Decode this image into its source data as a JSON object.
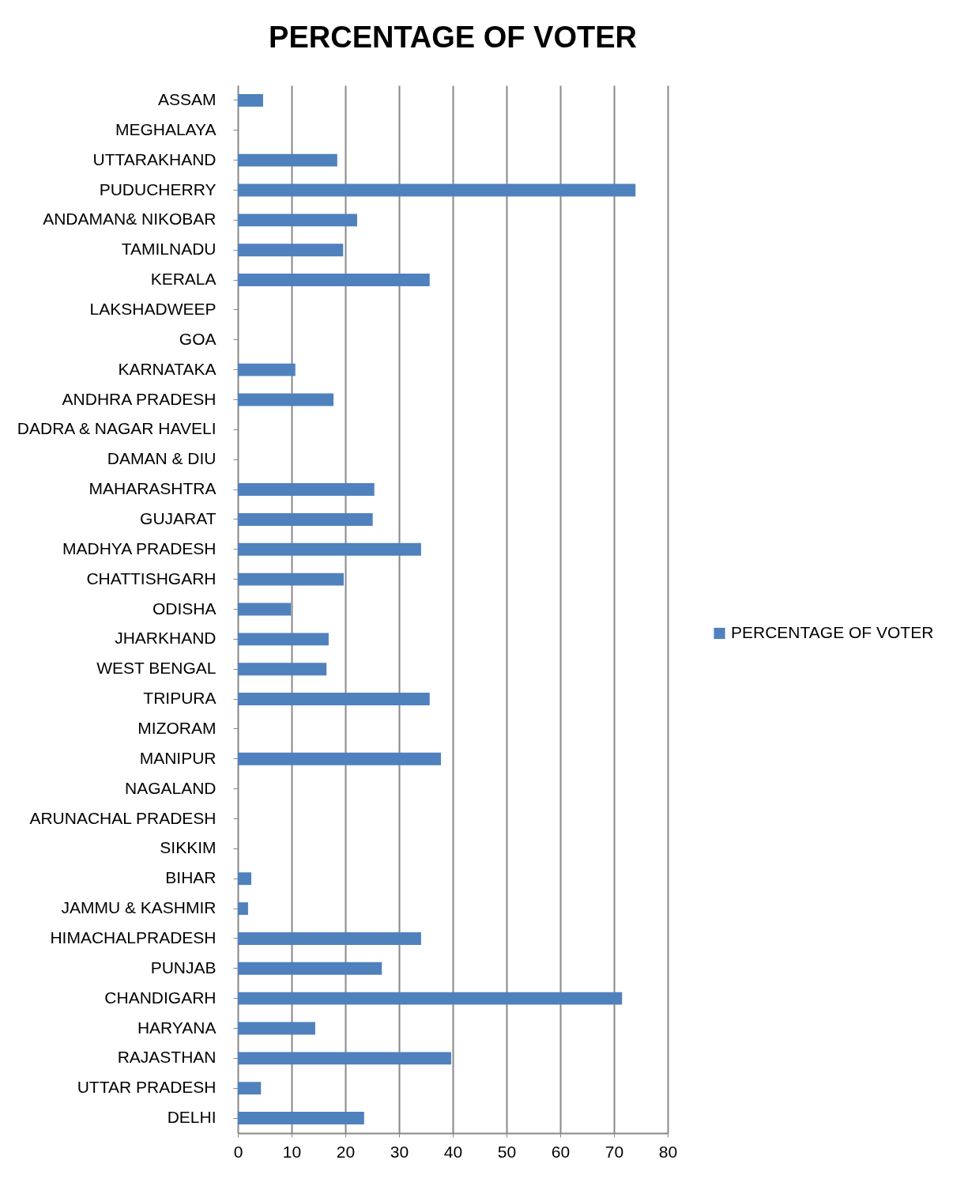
{
  "chart_data": {
    "type": "bar",
    "title": "PERCENTAGE OF VOTER",
    "orientation": "horizontal",
    "categories": [
      "ASSAM",
      "MEGHALAYA",
      "UTTARAKHAND",
      "PUDUCHERRY",
      "ANDAMAN& NIKOBAR",
      "TAMILNADU",
      "KERALA",
      "LAKSHADWEEP",
      "GOA",
      "KARNATAKA",
      "ANDHRA PRADESH",
      "DADRA & NAGAR HAVELI",
      "DAMAN & DIU",
      "MAHARASHTRA",
      "GUJARAT",
      "MADHYA PRADESH",
      "CHATTISHGARH",
      "ODISHA",
      "JHARKHAND",
      "WEST BENGAL",
      "TRIPURA",
      "MIZORAM",
      "MANIPUR",
      "NAGALAND",
      "ARUNACHAL PRADESH",
      "SIKKIM",
      "BIHAR",
      "JAMMU & KASHMIR",
      "HIMACHALPRADESH",
      "PUNJAB",
      "CHANDIGARH",
      "HARYANA",
      "RAJASTHAN",
      "UTTAR PRADESH",
      "DELHI"
    ],
    "series": [
      {
        "name": "PERCENTAGE OF VOTER",
        "color": "#4f81bd",
        "values": [
          4.7,
          0,
          18.5,
          74,
          22.2,
          19.6,
          35.7,
          0,
          0,
          10.7,
          17.8,
          0,
          0,
          25.4,
          25.1,
          34.1,
          19.7,
          9.9,
          16.9,
          16.5,
          35.7,
          0,
          37.8,
          0,
          0,
          0,
          2.5,
          1.9,
          34.1,
          26.8,
          71.5,
          14.4,
          39.7,
          4.3,
          23.5
        ]
      }
    ],
    "xlim": [
      0,
      80
    ],
    "xticks": [
      0,
      10,
      20,
      30,
      40,
      50,
      60,
      70,
      80
    ],
    "grid": "x",
    "legend": "right"
  }
}
